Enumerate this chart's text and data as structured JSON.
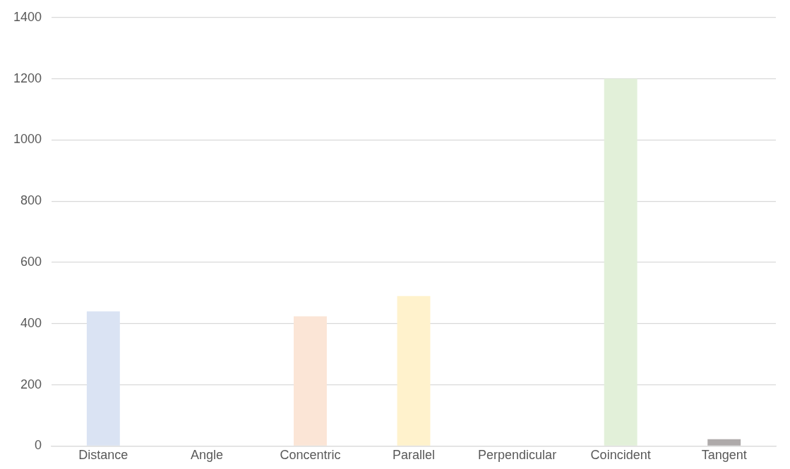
{
  "chart_data": {
    "type": "bar",
    "categories": [
      "Distance",
      "Angle",
      "Concentric",
      "Parallel",
      "Perpendicular",
      "Coincident",
      "Tangent"
    ],
    "values": [
      440,
      0,
      424,
      490,
      0,
      1200,
      22
    ],
    "colors": [
      "#dae3f3",
      "#bdd7ee",
      "#fbe5d6",
      "#fff2cc",
      "#d9d9d9",
      "#e2f0d9",
      "#aeaaaa"
    ],
    "ylim": [
      0,
      1400
    ],
    "yticks": [
      0,
      200,
      400,
      600,
      800,
      1000,
      1200,
      1400
    ],
    "grid": "y",
    "legend": false
  }
}
